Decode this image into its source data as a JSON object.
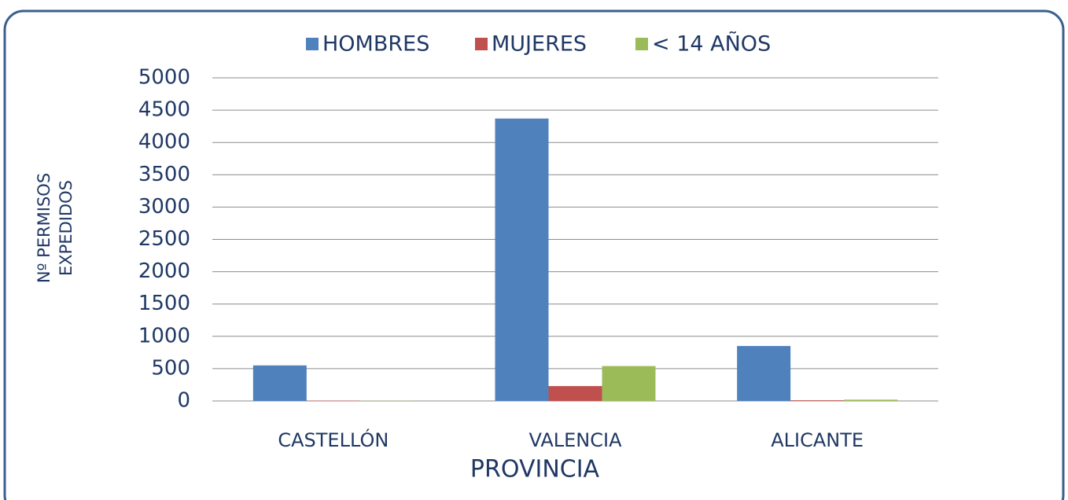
{
  "chart_data": {
    "type": "bar",
    "categories": [
      "CASTELLÓN",
      "VALENCIA",
      "ALICANTE"
    ],
    "series": [
      {
        "name": "HOMBRES",
        "color": "#4f81bd",
        "values": [
          550,
          4370,
          850
        ]
      },
      {
        "name": "MUJERES",
        "color": "#c0504d",
        "values": [
          5,
          230,
          10
        ]
      },
      {
        "name": "< 14 AÑOS",
        "color": "#9bbb59",
        "values": [
          3,
          540,
          20
        ]
      }
    ],
    "xlabel": "PROVINCIA",
    "ylabel": [
      "Nº PERMISOS",
      "EXPEDIDOS"
    ],
    "ylim": [
      0,
      5000
    ],
    "yticks": [
      0,
      500,
      1000,
      1500,
      2000,
      2500,
      3000,
      3500,
      4000,
      4500,
      5000
    ],
    "grid": true,
    "legend": "top"
  }
}
